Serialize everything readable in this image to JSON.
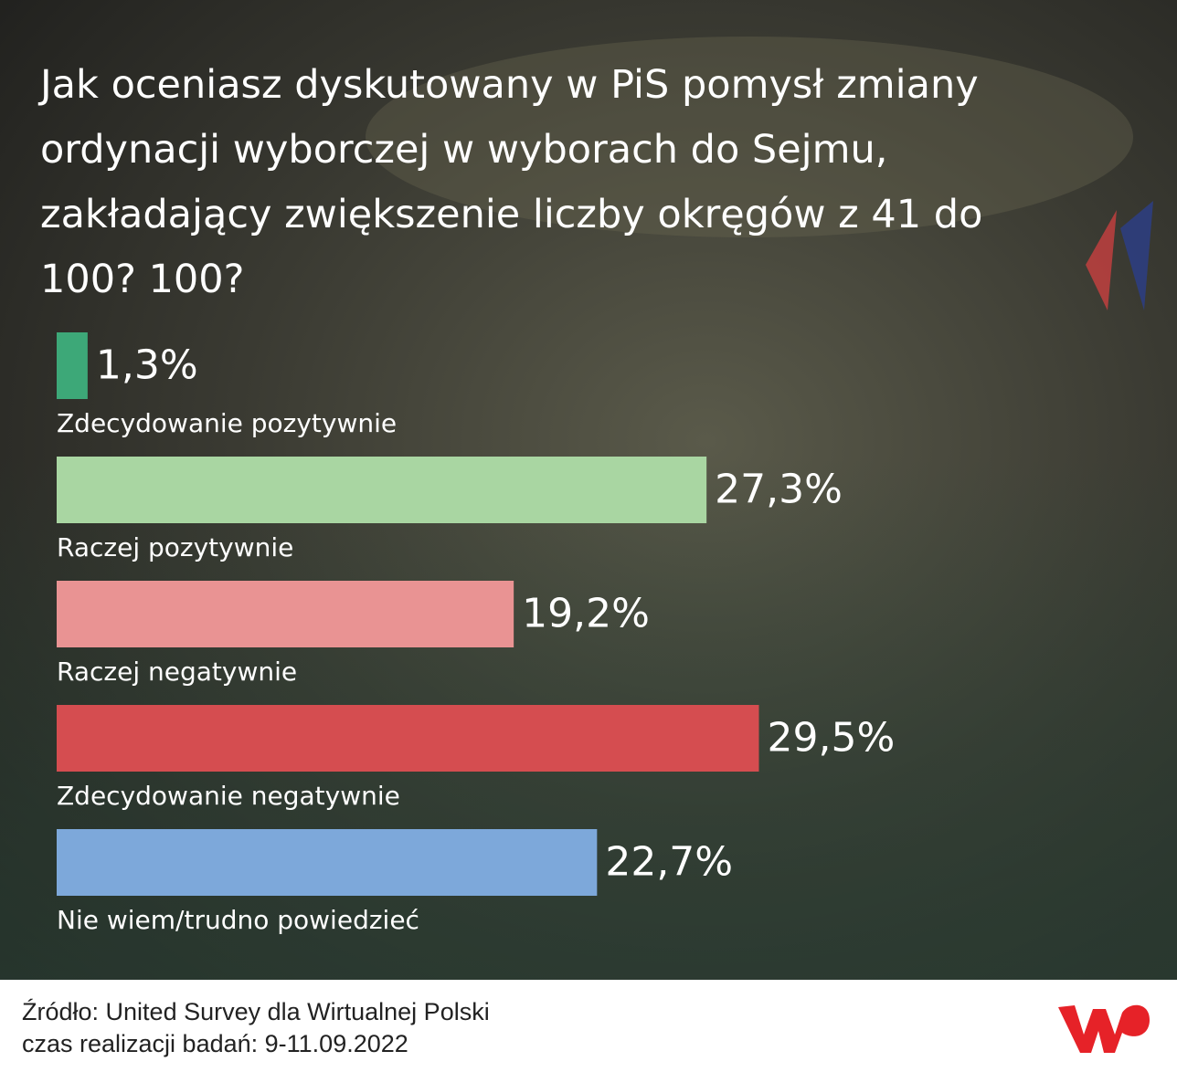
{
  "chart_data": {
    "type": "bar",
    "orientation": "horizontal",
    "title": "Jak oceniasz dyskutowany w PiS pomysł zmiany ordynacji wyborczej w wyborach do Sejmu, zakładający zwiększenie liczby okręgów z 41 do 100? 100?",
    "categories": [
      "Zdecydowanie pozytywnie",
      "Raczej pozytywnie",
      "Raczej negatywnie",
      "Zdecydowanie negatywnie",
      "Nie wiem/trudno powiedzieć"
    ],
    "values": [
      1.3,
      27.3,
      19.2,
      29.5,
      22.7
    ],
    "value_labels": [
      "1,3%",
      "27,3%",
      "19,2%",
      "29,5%",
      "22,7%"
    ],
    "colors": [
      "#3da878",
      "#a9d6a2",
      "#e99393",
      "#d54d50",
      "#7da8da"
    ],
    "source": "Źródło: United Survey dla Wirtualnej Polski",
    "note": "czas realizacji badań: 9-11.09.2022"
  }
}
